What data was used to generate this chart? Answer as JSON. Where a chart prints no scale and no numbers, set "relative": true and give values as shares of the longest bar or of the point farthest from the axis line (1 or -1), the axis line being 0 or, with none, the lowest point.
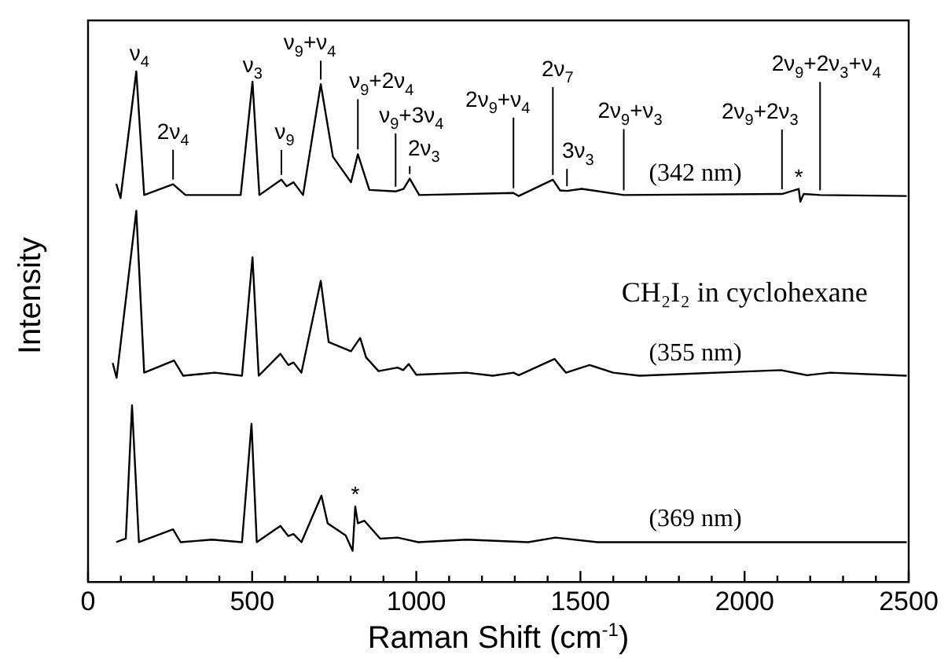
{
  "chart_data": {
    "type": "line",
    "relative": true,
    "xlabel": "Raman Shift (cm$^{-1}$)",
    "ylabel": "Intensity",
    "xlim": [
      0,
      2500
    ],
    "xticks": [
      0,
      {
        "value": 100,
        "label": null
      },
      {
        "value": 200,
        "label": null
      },
      {
        "value": 300,
        "label": null
      },
      {
        "value": 400,
        "label": null
      },
      500,
      {
        "value": 600,
        "label": null
      },
      {
        "value": 700,
        "label": null
      },
      {
        "value": 800,
        "label": null
      },
      {
        "value": 900,
        "label": null
      },
      1000,
      {
        "value": 1100,
        "label": null
      },
      {
        "value": 1200,
        "label": null
      },
      {
        "value": 1300,
        "label": null
      },
      {
        "value": 1400,
        "label": null
      },
      1500,
      {
        "value": 1600,
        "label": null
      },
      {
        "value": 1700,
        "label": null
      },
      {
        "value": 1800,
        "label": null
      },
      {
        "value": 1900,
        "label": null
      },
      2000,
      {
        "value": 2100,
        "label": null
      },
      {
        "value": 2200,
        "label": null
      },
      {
        "value": 2300,
        "label": null
      },
      {
        "value": 2400,
        "label": null
      },
      2500
    ],
    "grid": false,
    "legend": "right",
    "marker": "none",
    "line_style": "solid",
    "series": [
      {
        "name": "(342 nm)",
        "color": "#000000",
        "x": [
          86,
          99,
          147,
          171,
          259,
          297,
          465,
          501,
          522,
          589,
          605,
          626,
          655,
          709,
          746,
          801,
          822,
          857,
          937,
          961,
          980,
          1009,
          1296,
          1312,
          1416,
          1438,
          1459,
          1504,
          1632,
          2114,
          2165,
          2170,
          2180,
          2230,
          2494
        ],
        "values": [
          0.78,
          0.752,
          1.0,
          0.758,
          0.779,
          0.758,
          0.758,
          0.98,
          0.758,
          0.788,
          0.775,
          0.783,
          0.758,
          0.975,
          0.833,
          0.783,
          0.838,
          0.768,
          0.765,
          0.77,
          0.79,
          0.758,
          0.762,
          0.756,
          0.788,
          0.767,
          0.766,
          0.77,
          0.758,
          0.76,
          0.77,
          0.745,
          0.76,
          0.758,
          0.756
        ]
      },
      {
        "name": "(355 nm)",
        "color": "#000000",
        "x": [
          75,
          87,
          147,
          171,
          262,
          290,
          386,
          469,
          501,
          520,
          586,
          610,
          626,
          650,
          709,
          733,
          801,
          829,
          847,
          885,
          943,
          960,
          977,
          1000,
          1153,
          1233,
          1296,
          1312,
          1421,
          1456,
          1528,
          1600,
          1680,
          2111,
          2190,
          2261,
          2494
        ],
        "values": [
          0.429,
          0.4,
          0.727,
          0.41,
          0.434,
          0.404,
          0.41,
          0.404,
          0.636,
          0.404,
          0.447,
          0.425,
          0.43,
          0.41,
          0.59,
          0.47,
          0.452,
          0.478,
          0.44,
          0.413,
          0.42,
          0.415,
          0.427,
          0.406,
          0.41,
          0.404,
          0.41,
          0.405,
          0.437,
          0.41,
          0.425,
          0.41,
          0.404,
          0.415,
          0.405,
          0.41,
          0.404
        ]
      },
      {
        "name": "(369 nm)",
        "color": "#000000",
        "x": [
          86,
          115,
          134,
          155,
          259,
          282,
          378,
          469,
          498,
          514,
          586,
          610,
          626,
          650,
          711,
          730,
          785,
          806,
          814,
          822,
          842,
          890,
          943,
          1006,
          1153,
          1341,
          1424,
          1552,
          2494
        ],
        "values": [
          0.078,
          0.085,
          0.346,
          0.078,
          0.103,
          0.078,
          0.083,
          0.078,
          0.31,
          0.078,
          0.11,
          0.09,
          0.094,
          0.078,
          0.169,
          0.115,
          0.091,
          0.061,
          0.148,
          0.115,
          0.12,
          0.085,
          0.087,
          0.078,
          0.083,
          0.078,
          0.087,
          0.078,
          0.078
        ]
      }
    ],
    "annotations": [
      {
        "text": "ν$_{4}$",
        "x": 147,
        "y": 1.0
      },
      {
        "text": "2ν$_{4}$",
        "x": 259,
        "y": 0.779
      },
      {
        "text": "ν$_{3}$",
        "x": 501,
        "y": 0.98
      },
      {
        "text": "ν$_{9}$",
        "x": 589,
        "y": 0.788
      },
      {
        "text": "ν$_{9}$+ν$_{4}$",
        "x": 709,
        "y": 0.975
      },
      {
        "text": "ν$_{9}$+2ν$_{4}$",
        "x": 822,
        "y": 0.838
      },
      {
        "text": "ν$_{9}$+3ν$_{4}$",
        "x": 937,
        "y": 0.765
      },
      {
        "text": "2ν$_{3}$",
        "x": 980,
        "y": 0.79
      },
      {
        "text": "2ν$_{9}$+ν$_{4}$",
        "x": 1296,
        "y": 0.762
      },
      {
        "text": "2ν$_{7}$",
        "x": 1416,
        "y": 0.788
      },
      {
        "text": "3ν$_{3}$",
        "x": 1459,
        "y": 0.766
      },
      {
        "text": "2ν$_{9}$+ν$_{3}$",
        "x": 1632,
        "y": 0.758
      },
      {
        "text": "2ν$_{9}$+2ν$_{3}$",
        "x": 2114,
        "y": 0.76
      },
      {
        "text": "*",
        "x": 2165,
        "y": 0.77
      },
      {
        "text": "2ν$_{9}$+2ν$_{3}$+ν$_{4}$",
        "x": 2230,
        "y": 0.758
      },
      {
        "text": "*",
        "x": 814,
        "y": 0.148
      },
      "CH₂I₂ in cyclohexane"
    ]
  }
}
